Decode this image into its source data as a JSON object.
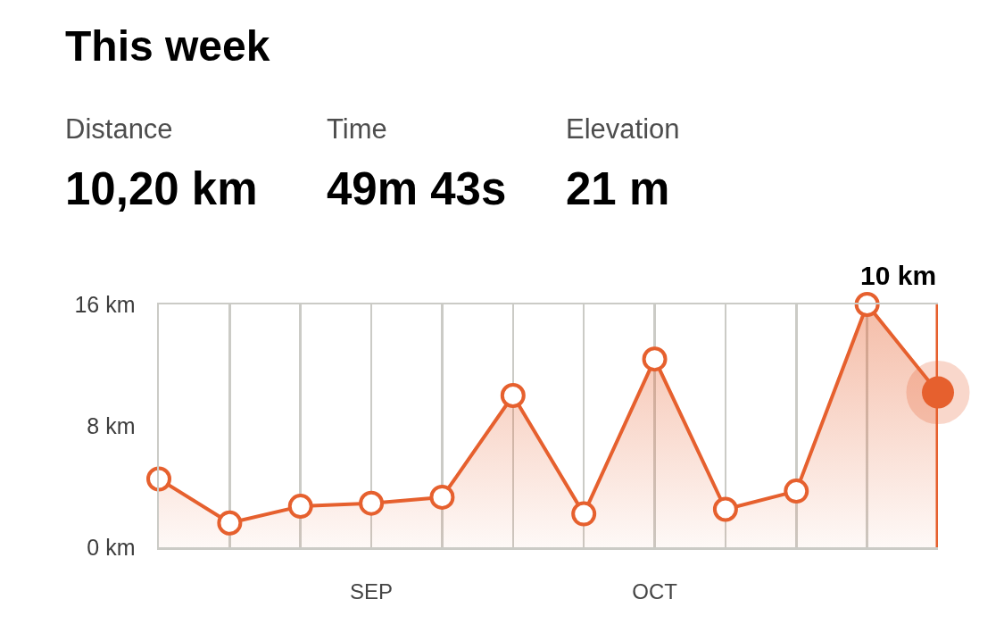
{
  "chart_data": {
    "type": "area",
    "title": "This week",
    "annotations": [
      "Distance",
      "10,20 km",
      "Time",
      "49m 43s",
      "Elevation",
      "21 m",
      "10 km"
    ],
    "categories": [
      null,
      null,
      null,
      "SEP",
      null,
      null,
      null,
      "OCT",
      null,
      null,
      null,
      null
    ],
    "values": [
      4.5,
      1.6,
      2.7,
      2.9,
      3.3,
      10.0,
      2.2,
      12.4,
      2.5,
      3.7,
      16.0,
      10.2
    ],
    "color": "#e6602e",
    "marker": "circle",
    "ylim": [
      0,
      16
    ],
    "yticks": [
      {
        "value": 0,
        "label": "0 km"
      },
      {
        "value": 8,
        "label": "8 km"
      },
      {
        "value": 16,
        "label": "16 km"
      }
    ],
    "grid": "x"
  }
}
